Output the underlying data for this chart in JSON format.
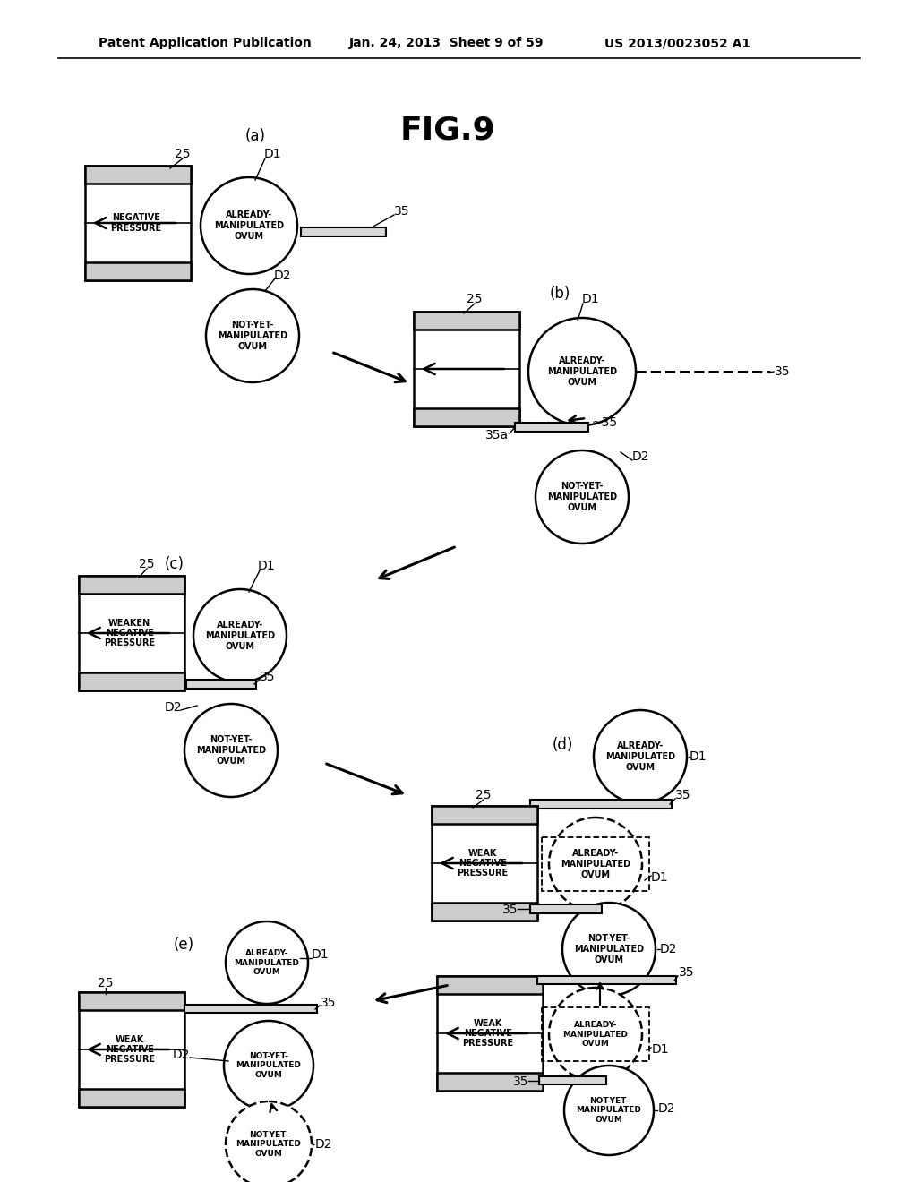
{
  "title": "FIG.9",
  "header_left": "Patent Application Publication",
  "header_center": "Jan. 24, 2013  Sheet 9 of 59",
  "header_right": "US 2013/0023052 A1",
  "bg_color": "#ffffff",
  "fig_width": 10.24,
  "fig_height": 13.2,
  "dpi": 100
}
